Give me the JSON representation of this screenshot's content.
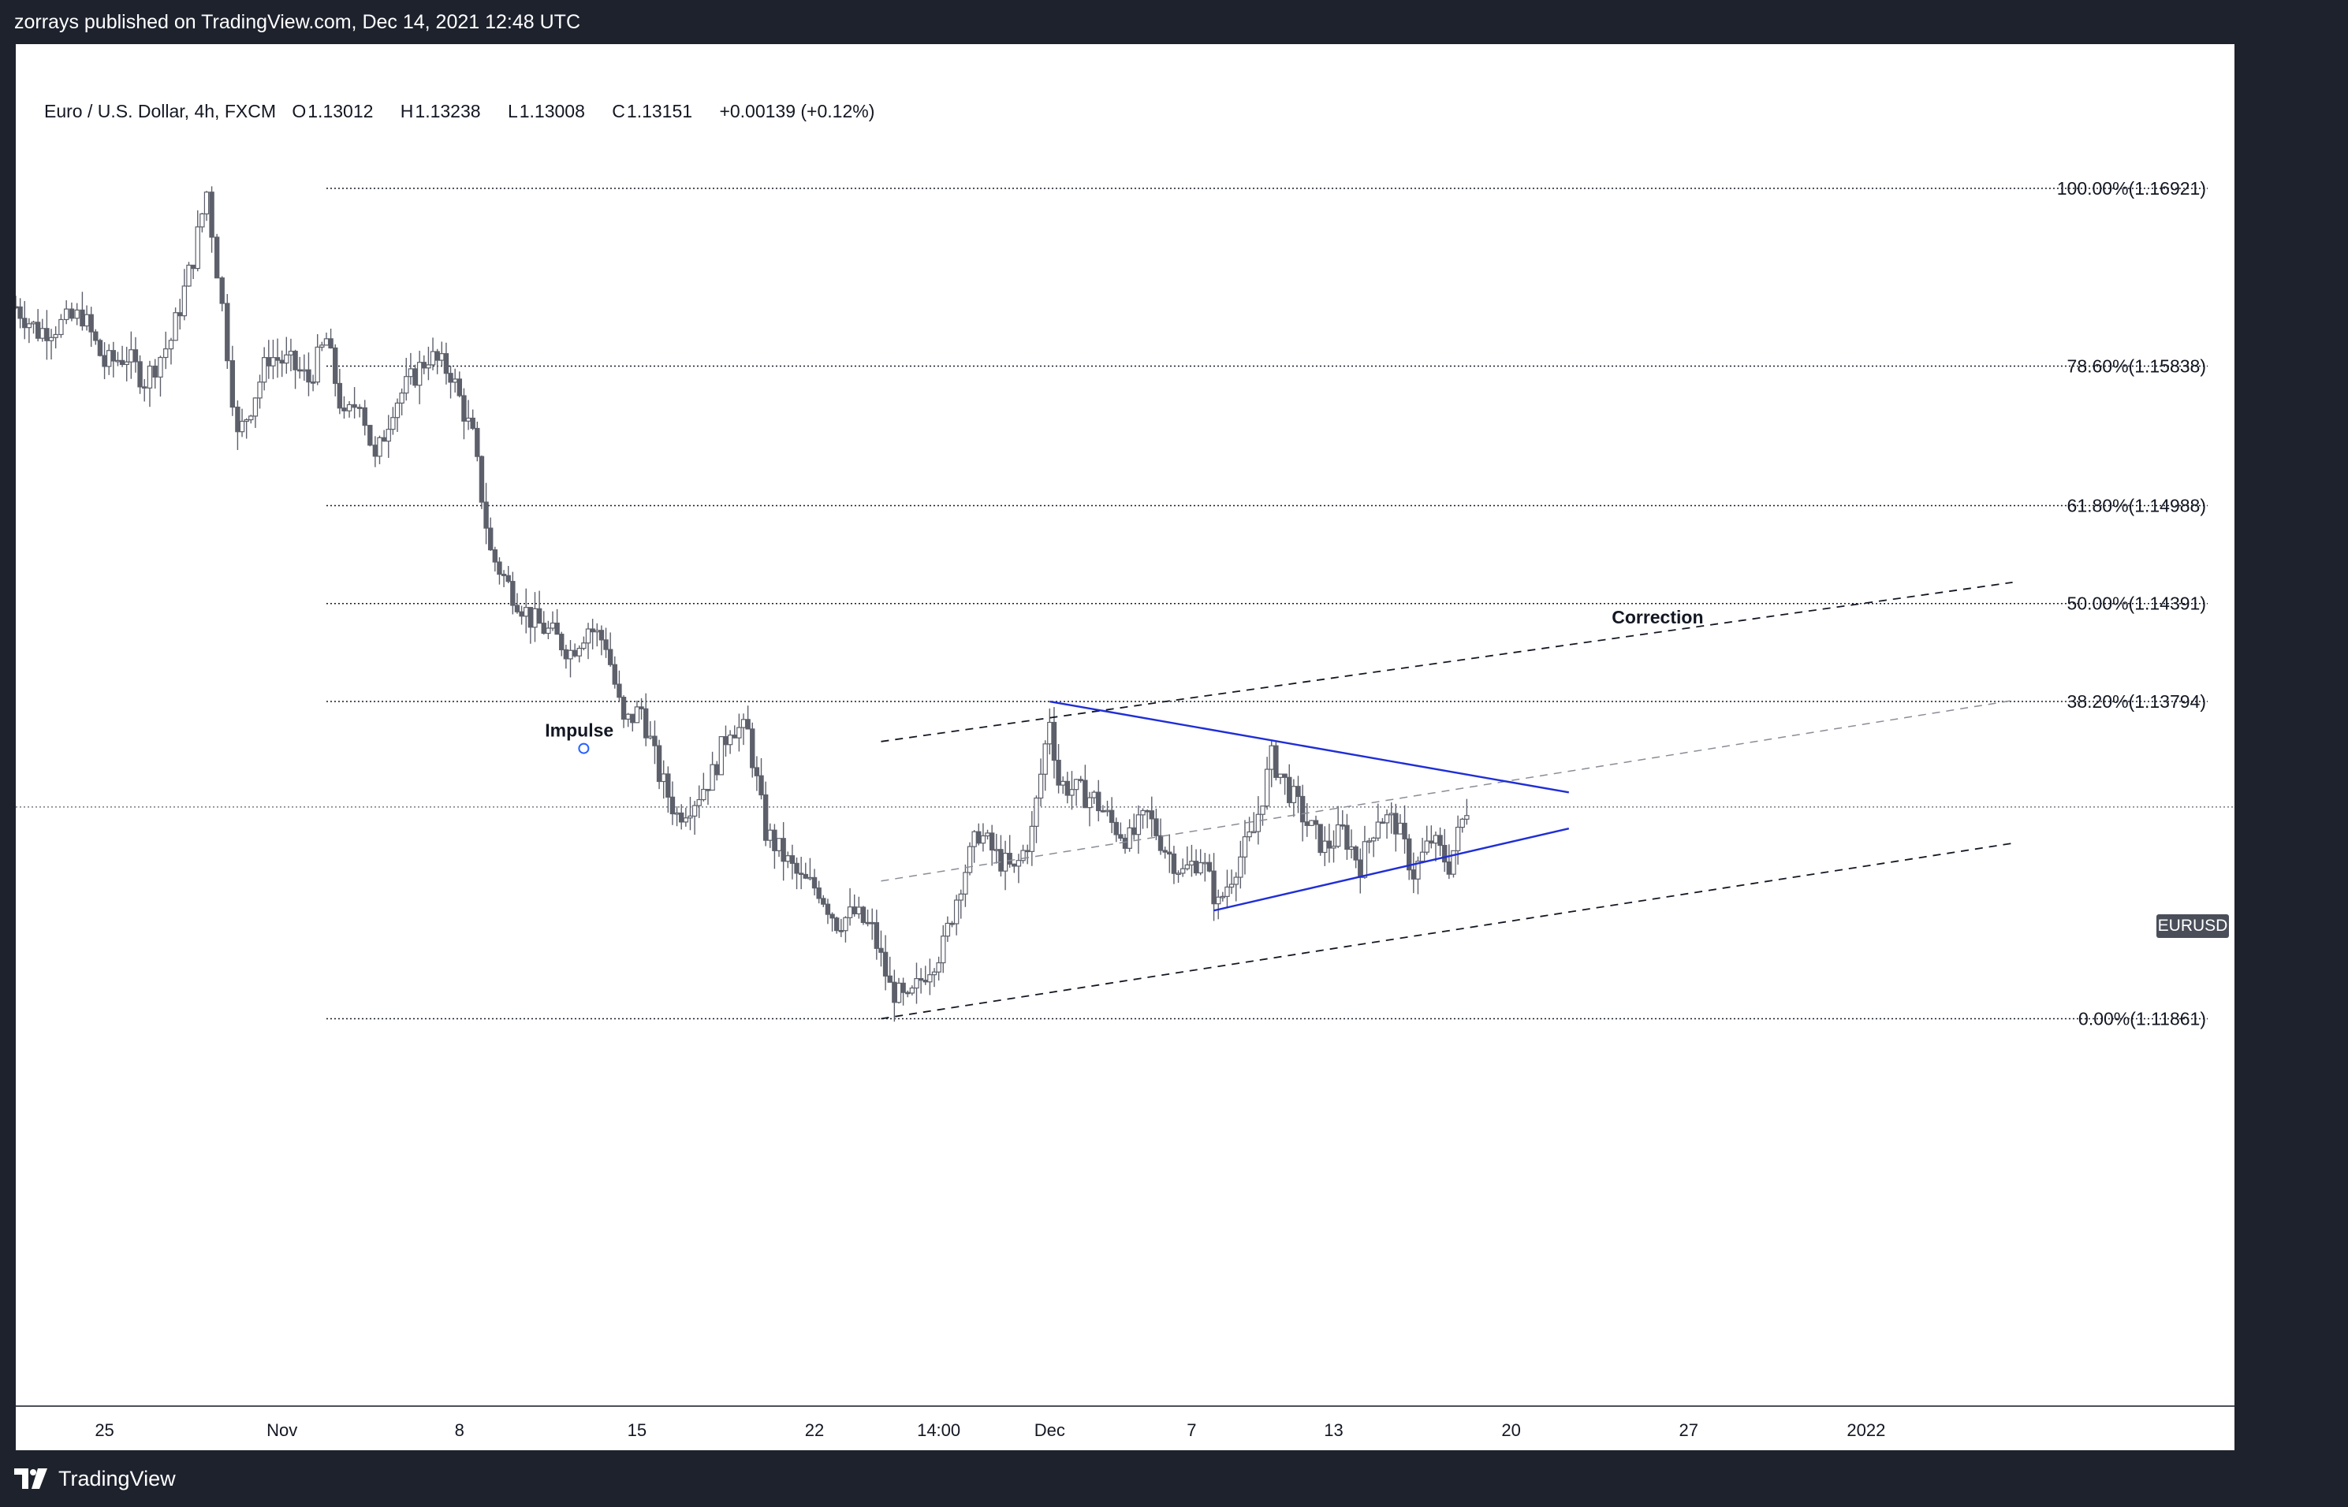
{
  "publish_bar": {
    "text": "zorrays published on TradingView.com, Dec 14, 2021 12:48 UTC"
  },
  "legend": {
    "title": "Euro / U.S. Dollar, 4h, FXCM",
    "open_key": "O",
    "open": "1.13012",
    "high_key": "H",
    "high": "1.13238",
    "low_key": "L",
    "low": "1.13008",
    "close_key": "C",
    "close": "1.13151",
    "change": "+0.00139 (+0.12%)"
  },
  "symbol_tag": "EURUSD",
  "footer": {
    "brand": "TradingView"
  },
  "annotations": {
    "impulse": "Impulse",
    "correction": "Correction"
  },
  "colors": {
    "candle_body": "#5d606b",
    "candle_up_fill": "#ffffff",
    "triangle_line": "#1f2ed6",
    "channel_dash": "#131722",
    "fib_line": "#131722"
  },
  "chart_data": {
    "type": "candlestick",
    "symbol": "EURUSD",
    "timeframe": "4h",
    "ylim": [
      1.095,
      1.178
    ],
    "fib_levels": [
      {
        "label": "100.00%(1.16921)",
        "price": 1.16921
      },
      {
        "label": "78.60%(1.15838)",
        "price": 1.15838
      },
      {
        "label": "61.80%(1.14988)",
        "price": 1.14988
      },
      {
        "label": "50.00%(1.14391)",
        "price": 1.14391
      },
      {
        "label": "38.20%(1.13794)",
        "price": 1.13794
      },
      {
        "label": "0.00%(1.11861)",
        "price": 1.11861
      }
    ],
    "current_price": 1.13151,
    "time_axis": [
      "25",
      "Nov",
      "8",
      "15",
      "22",
      "14:00",
      "Dec",
      "7",
      "13",
      "20",
      "27",
      "2022"
    ],
    "close_path": [
      [
        0,
        1.162
      ],
      [
        10,
        1.1605
      ],
      [
        18,
        1.1608
      ],
      [
        30,
        1.1615
      ],
      [
        40,
        1.1585
      ],
      [
        50,
        1.159
      ],
      [
        58,
        1.1575
      ],
      [
        70,
        1.16
      ],
      [
        80,
        1.165
      ],
      [
        86,
        1.169
      ],
      [
        93,
        1.162
      ],
      [
        100,
        1.154
      ],
      [
        106,
        1.156
      ],
      [
        114,
        1.159
      ],
      [
        124,
        1.1585
      ],
      [
        132,
        1.1575
      ],
      [
        140,
        1.16
      ],
      [
        148,
        1.155
      ],
      [
        155,
        1.1565
      ],
      [
        162,
        1.1525
      ],
      [
        170,
        1.156
      ],
      [
        178,
        1.1575
      ],
      [
        186,
        1.159
      ],
      [
        196,
        1.158
      ],
      [
        206,
        1.154
      ],
      [
        214,
        1.147
      ],
      [
        222,
        1.145
      ],
      [
        232,
        1.143
      ],
      [
        242,
        1.142
      ],
      [
        250,
        1.141
      ],
      [
        258,
        1.1425
      ],
      [
        266,
        1.1415
      ],
      [
        274,
        1.1365
      ],
      [
        282,
        1.1375
      ],
      [
        290,
        1.1335
      ],
      [
        298,
        1.131
      ],
      [
        306,
        1.132
      ],
      [
        314,
        1.1335
      ],
      [
        322,
        1.1365
      ],
      [
        330,
        1.136
      ],
      [
        338,
        1.13
      ],
      [
        346,
        1.1285
      ],
      [
        354,
        1.127
      ],
      [
        362,
        1.1265
      ],
      [
        370,
        1.1245
      ],
      [
        378,
        1.125
      ],
      [
        386,
        1.124
      ],
      [
        394,
        1.1205
      ],
      [
        402,
        1.1195
      ],
      [
        410,
        1.1215
      ],
      [
        418,
        1.123
      ],
      [
        426,
        1.127
      ],
      [
        434,
        1.13
      ],
      [
        442,
        1.1285
      ],
      [
        450,
        1.1275
      ],
      [
        458,
        1.13
      ],
      [
        466,
        1.137
      ],
      [
        470,
        1.133
      ],
      [
        478,
        1.1325
      ],
      [
        486,
        1.132
      ],
      [
        494,
        1.1305
      ],
      [
        502,
        1.1295
      ],
      [
        510,
        1.131
      ],
      [
        518,
        1.129
      ],
      [
        526,
        1.1275
      ],
      [
        534,
        1.1285
      ],
      [
        542,
        1.1255
      ],
      [
        550,
        1.128
      ],
      [
        558,
        1.13
      ],
      [
        566,
        1.1345
      ],
      [
        574,
        1.1325
      ],
      [
        582,
        1.1305
      ],
      [
        590,
        1.129
      ],
      [
        598,
        1.13
      ],
      [
        606,
        1.128
      ],
      [
        614,
        1.131
      ],
      [
        622,
        1.1305
      ],
      [
        630,
        1.1275
      ],
      [
        638,
        1.1295
      ],
      [
        646,
        1.128
      ],
      [
        654,
        1.1315
      ]
    ],
    "triangle": {
      "upper": [
        [
          466,
          1.13794
        ],
        [
          700,
          1.1324
        ]
      ],
      "lower": [
        [
          540,
          1.1252
        ],
        [
          700,
          1.1302
        ]
      ]
    },
    "channel": {
      "upper": [
        [
          390,
          1.1355
        ],
        [
          900,
          1.1452
        ]
      ],
      "middle": [
        [
          390,
          1.127
        ],
        [
          900,
          1.138
        ]
      ],
      "lower": [
        [
          390,
          1.11861
        ],
        [
          900,
          1.1293
        ]
      ]
    }
  }
}
